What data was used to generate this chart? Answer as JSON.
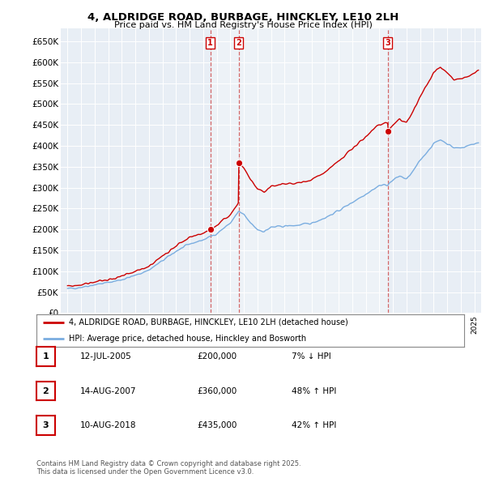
{
  "title": "4, ALDRIDGE ROAD, BURBAGE, HINCKLEY, LE10 2LH",
  "subtitle": "Price paid vs. HM Land Registry's House Price Index (HPI)",
  "ylim": [
    0,
    680000
  ],
  "yticks": [
    0,
    50000,
    100000,
    150000,
    200000,
    250000,
    300000,
    350000,
    400000,
    450000,
    500000,
    550000,
    600000,
    650000
  ],
  "ytick_labels": [
    "£0",
    "£50K",
    "£100K",
    "£150K",
    "£200K",
    "£250K",
    "£300K",
    "£350K",
    "£400K",
    "£450K",
    "£500K",
    "£550K",
    "£600K",
    "£650K"
  ],
  "xlim_start": 1994.5,
  "xlim_end": 2025.5,
  "background_color": "#ffffff",
  "plot_bg_color": "#e8eef5",
  "grid_color": "#ffffff",
  "red_line_color": "#cc0000",
  "blue_line_color": "#7aade0",
  "sale_marker_color": "#cc0000",
  "sale_points": [
    {
      "date": 2005.53,
      "price": 200000,
      "label": "1"
    },
    {
      "date": 2007.62,
      "price": 360000,
      "label": "2"
    },
    {
      "date": 2018.61,
      "price": 435000,
      "label": "3"
    }
  ],
  "legend_red_label": "4, ALDRIDGE ROAD, BURBAGE, HINCKLEY, LE10 2LH (detached house)",
  "legend_blue_label": "HPI: Average price, detached house, Hinckley and Bosworth",
  "table_rows": [
    {
      "num": "1",
      "date": "12-JUL-2005",
      "price": "£200,000",
      "change": "7% ↓ HPI"
    },
    {
      "num": "2",
      "date": "14-AUG-2007",
      "price": "£360,000",
      "change": "48% ↑ HPI"
    },
    {
      "num": "3",
      "date": "10-AUG-2018",
      "price": "£435,000",
      "change": "42% ↑ HPI"
    }
  ],
  "footnote": "Contains HM Land Registry data © Crown copyright and database right 2025.\nThis data is licensed under the Open Government Licence v3.0."
}
